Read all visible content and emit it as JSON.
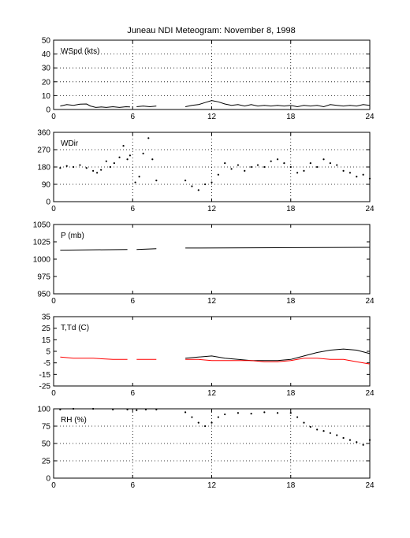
{
  "title": "Juneau NDI Meteogram:  November  8, 1998",
  "chart_data": [
    {
      "type": "line",
      "label": "WSpd (kts)",
      "xlim": [
        0,
        24
      ],
      "ylim": [
        0,
        50
      ],
      "xticks": [
        0,
        6,
        12,
        18,
        24
      ],
      "yticks": [
        0,
        10,
        20,
        30,
        40,
        50
      ],
      "grid": true,
      "series": [
        {
          "color": "#000000",
          "style": "line",
          "segments": [
            [
              [
                0.5,
                2.5
              ],
              [
                1.0,
                3.5
              ],
              [
                1.5,
                3.0
              ],
              [
                2.0,
                3.8
              ],
              [
                2.5,
                4.0
              ],
              [
                2.8,
                2.5
              ],
              [
                3.2,
                1.5
              ],
              [
                3.6,
                1.8
              ],
              [
                4.0,
                1.5
              ],
              [
                4.5,
                2.0
              ],
              [
                5.0,
                1.5
              ],
              [
                5.5,
                2.0
              ],
              [
                5.8,
                1.8
              ]
            ],
            [
              [
                6.3,
                2.0
              ],
              [
                6.8,
                2.5
              ],
              [
                7.3,
                2.0
              ],
              [
                7.8,
                2.5
              ]
            ],
            [
              [
                10.0,
                2.0
              ],
              [
                10.5,
                3.0
              ],
              [
                11.0,
                3.5
              ],
              [
                11.5,
                5.0
              ],
              [
                12.0,
                6.5
              ],
              [
                12.5,
                5.5
              ],
              [
                13.0,
                4.0
              ],
              [
                13.5,
                3.0
              ],
              [
                14.0,
                3.5
              ],
              [
                14.5,
                2.5
              ],
              [
                15.0,
                3.5
              ],
              [
                15.5,
                2.5
              ],
              [
                16.0,
                3.0
              ],
              [
                16.5,
                2.5
              ],
              [
                17.0,
                3.0
              ],
              [
                17.5,
                2.5
              ],
              [
                18.0,
                3.0
              ],
              [
                18.5,
                2.0
              ],
              [
                19.0,
                3.0
              ],
              [
                19.5,
                2.5
              ],
              [
                20.0,
                3.0
              ],
              [
                20.5,
                2.0
              ],
              [
                21.0,
                3.5
              ],
              [
                21.5,
                3.0
              ],
              [
                22.0,
                2.5
              ],
              [
                22.5,
                3.0
              ],
              [
                23.0,
                2.5
              ],
              [
                23.5,
                3.5
              ],
              [
                24.0,
                3.0
              ]
            ]
          ]
        }
      ]
    },
    {
      "type": "scatter",
      "label": "WDir",
      "xlim": [
        0,
        24
      ],
      "ylim": [
        0,
        360
      ],
      "xticks": [
        0,
        6,
        12,
        18,
        24
      ],
      "yticks": [
        0,
        90,
        180,
        270,
        360
      ],
      "grid": true,
      "series": [
        {
          "color": "#000000",
          "style": "dots",
          "segments": [
            [
              [
                0.5,
                175
              ],
              [
                1.0,
                185
              ],
              [
                1.5,
                180
              ],
              [
                2.0,
                190
              ],
              [
                2.5,
                175
              ],
              [
                3.0,
                160
              ],
              [
                3.3,
                150
              ],
              [
                3.6,
                165
              ],
              [
                4.0,
                210
              ],
              [
                4.3,
                180
              ],
              [
                4.6,
                200
              ],
              [
                5.0,
                230
              ],
              [
                5.3,
                290
              ],
              [
                5.6,
                220
              ],
              [
                5.8,
                240
              ]
            ],
            [
              [
                6.2,
                100
              ],
              [
                6.5,
                130
              ],
              [
                6.8,
                250
              ],
              [
                7.2,
                330
              ],
              [
                7.5,
                220
              ],
              [
                7.8,
                110
              ]
            ],
            [
              [
                10.0,
                110
              ],
              [
                10.5,
                80
              ],
              [
                11.0,
                60
              ],
              [
                11.5,
                90
              ],
              [
                12.0,
                100
              ],
              [
                12.5,
                140
              ],
              [
                13.0,
                200
              ],
              [
                13.5,
                170
              ],
              [
                14.0,
                190
              ],
              [
                14.5,
                160
              ],
              [
                15.0,
                180
              ],
              [
                15.5,
                190
              ],
              [
                16.0,
                180
              ],
              [
                16.5,
                210
              ],
              [
                17.0,
                220
              ],
              [
                17.5,
                200
              ],
              [
                18.0,
                180
              ],
              [
                18.5,
                150
              ],
              [
                19.0,
                160
              ],
              [
                19.5,
                200
              ],
              [
                20.0,
                180
              ],
              [
                20.5,
                220
              ],
              [
                21.0,
                200
              ],
              [
                21.5,
                190
              ],
              [
                22.0,
                160
              ],
              [
                22.5,
                150
              ],
              [
                23.0,
                130
              ],
              [
                23.5,
                140
              ],
              [
                24.0,
                120
              ]
            ]
          ]
        }
      ]
    },
    {
      "type": "line",
      "label": "P (mb)",
      "xlim": [
        0,
        24
      ],
      "ylim": [
        950,
        1050
      ],
      "xticks": [
        0,
        6,
        12,
        18,
        24
      ],
      "yticks": [
        950,
        975,
        1000,
        1025,
        1050
      ],
      "grid": false,
      "series": [
        {
          "color": "#000000",
          "style": "line",
          "segments": [
            [
              [
                0.5,
                1013
              ],
              [
                5.6,
                1014
              ]
            ],
            [
              [
                6.3,
                1014
              ],
              [
                7.8,
                1015
              ]
            ],
            [
              [
                10.0,
                1016
              ],
              [
                24.0,
                1017
              ]
            ]
          ]
        }
      ]
    },
    {
      "type": "line",
      "label": "T,Td (C)",
      "xlim": [
        0,
        24
      ],
      "ylim": [
        -25,
        35
      ],
      "xticks": [
        0,
        6,
        12,
        18,
        24
      ],
      "yticks": [
        -25,
        -15,
        -5,
        5,
        15,
        25,
        35
      ],
      "grid": false,
      "series": [
        {
          "color": "#000000",
          "style": "line",
          "segments": [
            [
              [
                10.0,
                -1
              ],
              [
                11.0,
                0
              ],
              [
                12.0,
                1
              ],
              [
                13.0,
                -1
              ],
              [
                14.0,
                -2
              ],
              [
                15.0,
                -3
              ],
              [
                16.0,
                -3
              ],
              [
                17.0,
                -3
              ],
              [
                18.0,
                -2
              ],
              [
                19.0,
                1
              ],
              [
                20.0,
                4
              ],
              [
                21.0,
                6
              ],
              [
                22.0,
                7
              ],
              [
                23.0,
                6
              ],
              [
                24.0,
                3
              ]
            ]
          ]
        },
        {
          "color": "#ff0000",
          "style": "line",
          "segments": [
            [
              [
                0.5,
                0
              ],
              [
                1.5,
                -1
              ],
              [
                3.0,
                -1
              ],
              [
                4.5,
                -2
              ],
              [
                5.6,
                -2
              ]
            ],
            [
              [
                6.3,
                -2
              ],
              [
                7.8,
                -2
              ]
            ],
            [
              [
                10.0,
                -2
              ],
              [
                11.0,
                -2
              ],
              [
                12.0,
                -3
              ],
              [
                13.0,
                -3
              ],
              [
                14.0,
                -3
              ],
              [
                15.0,
                -3
              ],
              [
                16.0,
                -4
              ],
              [
                17.0,
                -4
              ],
              [
                18.0,
                -3
              ],
              [
                19.0,
                -1
              ],
              [
                20.0,
                -1
              ],
              [
                21.0,
                -2
              ],
              [
                22.0,
                -2
              ],
              [
                23.0,
                -4
              ],
              [
                24.0,
                -6
              ]
            ]
          ]
        }
      ]
    },
    {
      "type": "scatter",
      "label": "RH (%)",
      "xlim": [
        0,
        24
      ],
      "ylim": [
        0,
        100
      ],
      "xticks": [
        0,
        6,
        12,
        18,
        24
      ],
      "yticks": [
        0,
        25,
        50,
        75,
        100
      ],
      "grid": true,
      "series": [
        {
          "color": "#000000",
          "style": "dots",
          "segments": [
            [
              [
                0.5,
                99
              ],
              [
                1.5,
                100
              ],
              [
                3.0,
                100
              ],
              [
                4.5,
                99
              ],
              [
                5.6,
                99
              ]
            ],
            [
              [
                6.3,
                98
              ],
              [
                7.0,
                99
              ],
              [
                7.8,
                99
              ]
            ],
            [
              [
                10.0,
                95
              ],
              [
                10.5,
                88
              ],
              [
                11.0,
                80
              ],
              [
                11.5,
                75
              ],
              [
                12.0,
                80
              ],
              [
                12.5,
                88
              ],
              [
                13.0,
                92
              ],
              [
                14.0,
                94
              ],
              [
                15.0,
                93
              ],
              [
                16.0,
                95
              ],
              [
                17.0,
                94
              ],
              [
                18.0,
                94
              ],
              [
                18.5,
                88
              ],
              [
                19.0,
                80
              ],
              [
                19.5,
                74
              ],
              [
                20.0,
                70
              ],
              [
                20.5,
                68
              ],
              [
                21.0,
                65
              ],
              [
                21.5,
                62
              ],
              [
                22.0,
                58
              ],
              [
                22.5,
                55
              ],
              [
                23.0,
                52
              ],
              [
                23.5,
                48
              ],
              [
                24.0,
                55
              ]
            ]
          ]
        }
      ]
    }
  ]
}
